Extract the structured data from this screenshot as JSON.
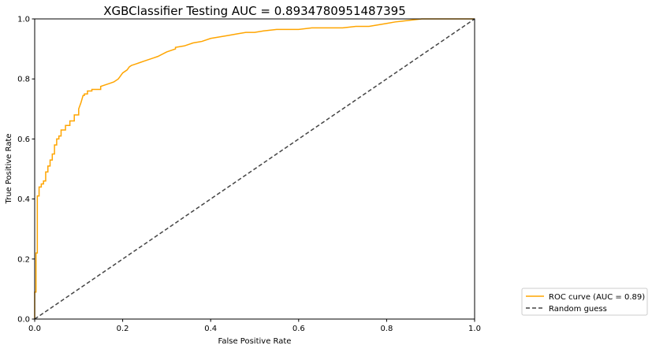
{
  "chart_data": {
    "type": "line",
    "title": "XGBClassifier Testing AUC = 0.8934780951487395",
    "xlabel": "False Positive Rate",
    "ylabel": "True Positive Rate",
    "xlim": [
      0,
      1
    ],
    "ylim": [
      0,
      1
    ],
    "xticks": [
      "0.0",
      "0.2",
      "0.4",
      "0.6",
      "0.8",
      "1.0"
    ],
    "yticks": [
      "0.0",
      "0.2",
      "0.4",
      "0.6",
      "0.8",
      "1.0"
    ],
    "grid": false,
    "legend_position": "outside-lower-right",
    "series": [
      {
        "name": "ROC curve (AUC = 0.89)",
        "color": "#FFA500",
        "style": "solid",
        "x": [
          0.0,
          0.0,
          0.003,
          0.003,
          0.006,
          0.006,
          0.01,
          0.01,
          0.015,
          0.015,
          0.02,
          0.02,
          0.025,
          0.025,
          0.03,
          0.03,
          0.035,
          0.035,
          0.04,
          0.04,
          0.045,
          0.045,
          0.05,
          0.05,
          0.055,
          0.055,
          0.06,
          0.06,
          0.07,
          0.07,
          0.08,
          0.08,
          0.09,
          0.09,
          0.1,
          0.1,
          0.105,
          0.11,
          0.113,
          0.113,
          0.12,
          0.12,
          0.13,
          0.13,
          0.15,
          0.15,
          0.17,
          0.18,
          0.19,
          0.195,
          0.2,
          0.21,
          0.215,
          0.22,
          0.23,
          0.24,
          0.25,
          0.27,
          0.28,
          0.3,
          0.32,
          0.32,
          0.34,
          0.36,
          0.38,
          0.4,
          0.42,
          0.44,
          0.46,
          0.48,
          0.5,
          0.52,
          0.55,
          0.58,
          0.6,
          0.63,
          0.66,
          0.7,
          0.73,
          0.76,
          0.78,
          0.8,
          0.82,
          0.85,
          0.88,
          0.9,
          0.93,
          0.96,
          1.0
        ],
        "y": [
          0.0,
          0.09,
          0.09,
          0.22,
          0.22,
          0.41,
          0.41,
          0.44,
          0.44,
          0.45,
          0.45,
          0.46,
          0.46,
          0.49,
          0.49,
          0.51,
          0.51,
          0.53,
          0.53,
          0.55,
          0.55,
          0.58,
          0.58,
          0.6,
          0.6,
          0.61,
          0.61,
          0.63,
          0.63,
          0.645,
          0.645,
          0.66,
          0.66,
          0.68,
          0.68,
          0.7,
          0.72,
          0.745,
          0.745,
          0.75,
          0.75,
          0.76,
          0.76,
          0.765,
          0.765,
          0.775,
          0.785,
          0.79,
          0.8,
          0.81,
          0.82,
          0.83,
          0.84,
          0.845,
          0.85,
          0.855,
          0.86,
          0.87,
          0.875,
          0.89,
          0.9,
          0.905,
          0.91,
          0.92,
          0.925,
          0.935,
          0.94,
          0.945,
          0.95,
          0.955,
          0.955,
          0.96,
          0.965,
          0.965,
          0.965,
          0.97,
          0.97,
          0.97,
          0.975,
          0.975,
          0.98,
          0.985,
          0.99,
          0.995,
          1.0,
          1.0,
          1.0,
          1.0,
          1.0
        ]
      },
      {
        "name": "Random guess",
        "color": "#444444",
        "style": "dashed",
        "x": [
          0,
          1
        ],
        "y": [
          0,
          1
        ]
      }
    ]
  }
}
